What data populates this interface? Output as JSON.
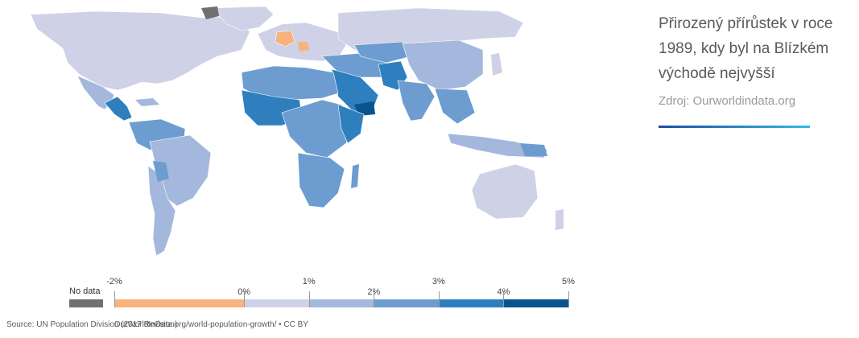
{
  "caption": {
    "title": "Přirozený přírůstek v roce 1989, kdy byl na Blízkém východě nejvyšší",
    "source": "Zdroj: Ourworldindata.org",
    "accent_colors": [
      "#1e4fa3",
      "#3bb6e8"
    ]
  },
  "map": {
    "footer_source": "Source: UN Population Division (2017 Revision)",
    "footer_credit": "OurWorldInData.org/world-population-growth/ • CC BY",
    "legend": {
      "nodata_label": "No data",
      "nodata_color": "#707070",
      "ticks": [
        "-2%",
        "0%",
        "1%",
        "2%",
        "3%",
        "4%",
        "5%"
      ],
      "bins": [
        {
          "from": -2,
          "to": 0,
          "color": "#f7b27d"
        },
        {
          "from": 0,
          "to": 1,
          "color": "#cfd1e6"
        },
        {
          "from": 1,
          "to": 2,
          "color": "#a3b8dc"
        },
        {
          "from": 2,
          "to": 3,
          "color": "#6d9dd0"
        },
        {
          "from": 3,
          "to": 4,
          "color": "#2f7fbf"
        },
        {
          "from": 4,
          "to": 5,
          "color": "#08548f"
        }
      ]
    },
    "colors": {
      "ocean": "#ffffff",
      "negative": "#f7b27d",
      "low": "#cfd1e6",
      "mid": "#a3b8dc",
      "midhigh": "#6d9dd0",
      "high": "#2f7fbf",
      "highest": "#08548f",
      "nodata": "#707070"
    }
  }
}
